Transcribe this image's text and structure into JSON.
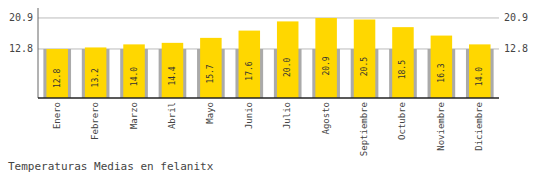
{
  "chart_data": {
    "type": "bar",
    "title": "Temperaturas Medias en felanitx",
    "categories": [
      "Enero",
      "Febrero",
      "Marzo",
      "Abril",
      "Mayo",
      "Junio",
      "Julio",
      "Agosto",
      "Septiembre",
      "Octubre",
      "Noviembre",
      "Diciembre"
    ],
    "series": [
      {
        "color": "#AAAAAA",
        "values": [
          12.8,
          12.8,
          12.8,
          12.8,
          12.8,
          12.8,
          12.8,
          12.8,
          12.8,
          12.8,
          12.8,
          12.8
        ]
      },
      {
        "color": "#FFD700",
        "values": [
          12.8,
          13.2,
          14.0,
          14.4,
          15.7,
          17.6,
          20.0,
          20.9,
          20.5,
          18.5,
          16.3,
          14.0
        ],
        "value_labels": [
          "12.8",
          "13.2",
          "14.0",
          "14.4",
          "15.7",
          "17.6",
          "20.0",
          "20.9",
          "20.5",
          "18.5",
          "16.3",
          "14.0"
        ]
      }
    ],
    "ylim": [
      0,
      23.5
    ],
    "yticks": [
      12.8,
      20.9
    ],
    "grid": true,
    "data_labels": true
  }
}
